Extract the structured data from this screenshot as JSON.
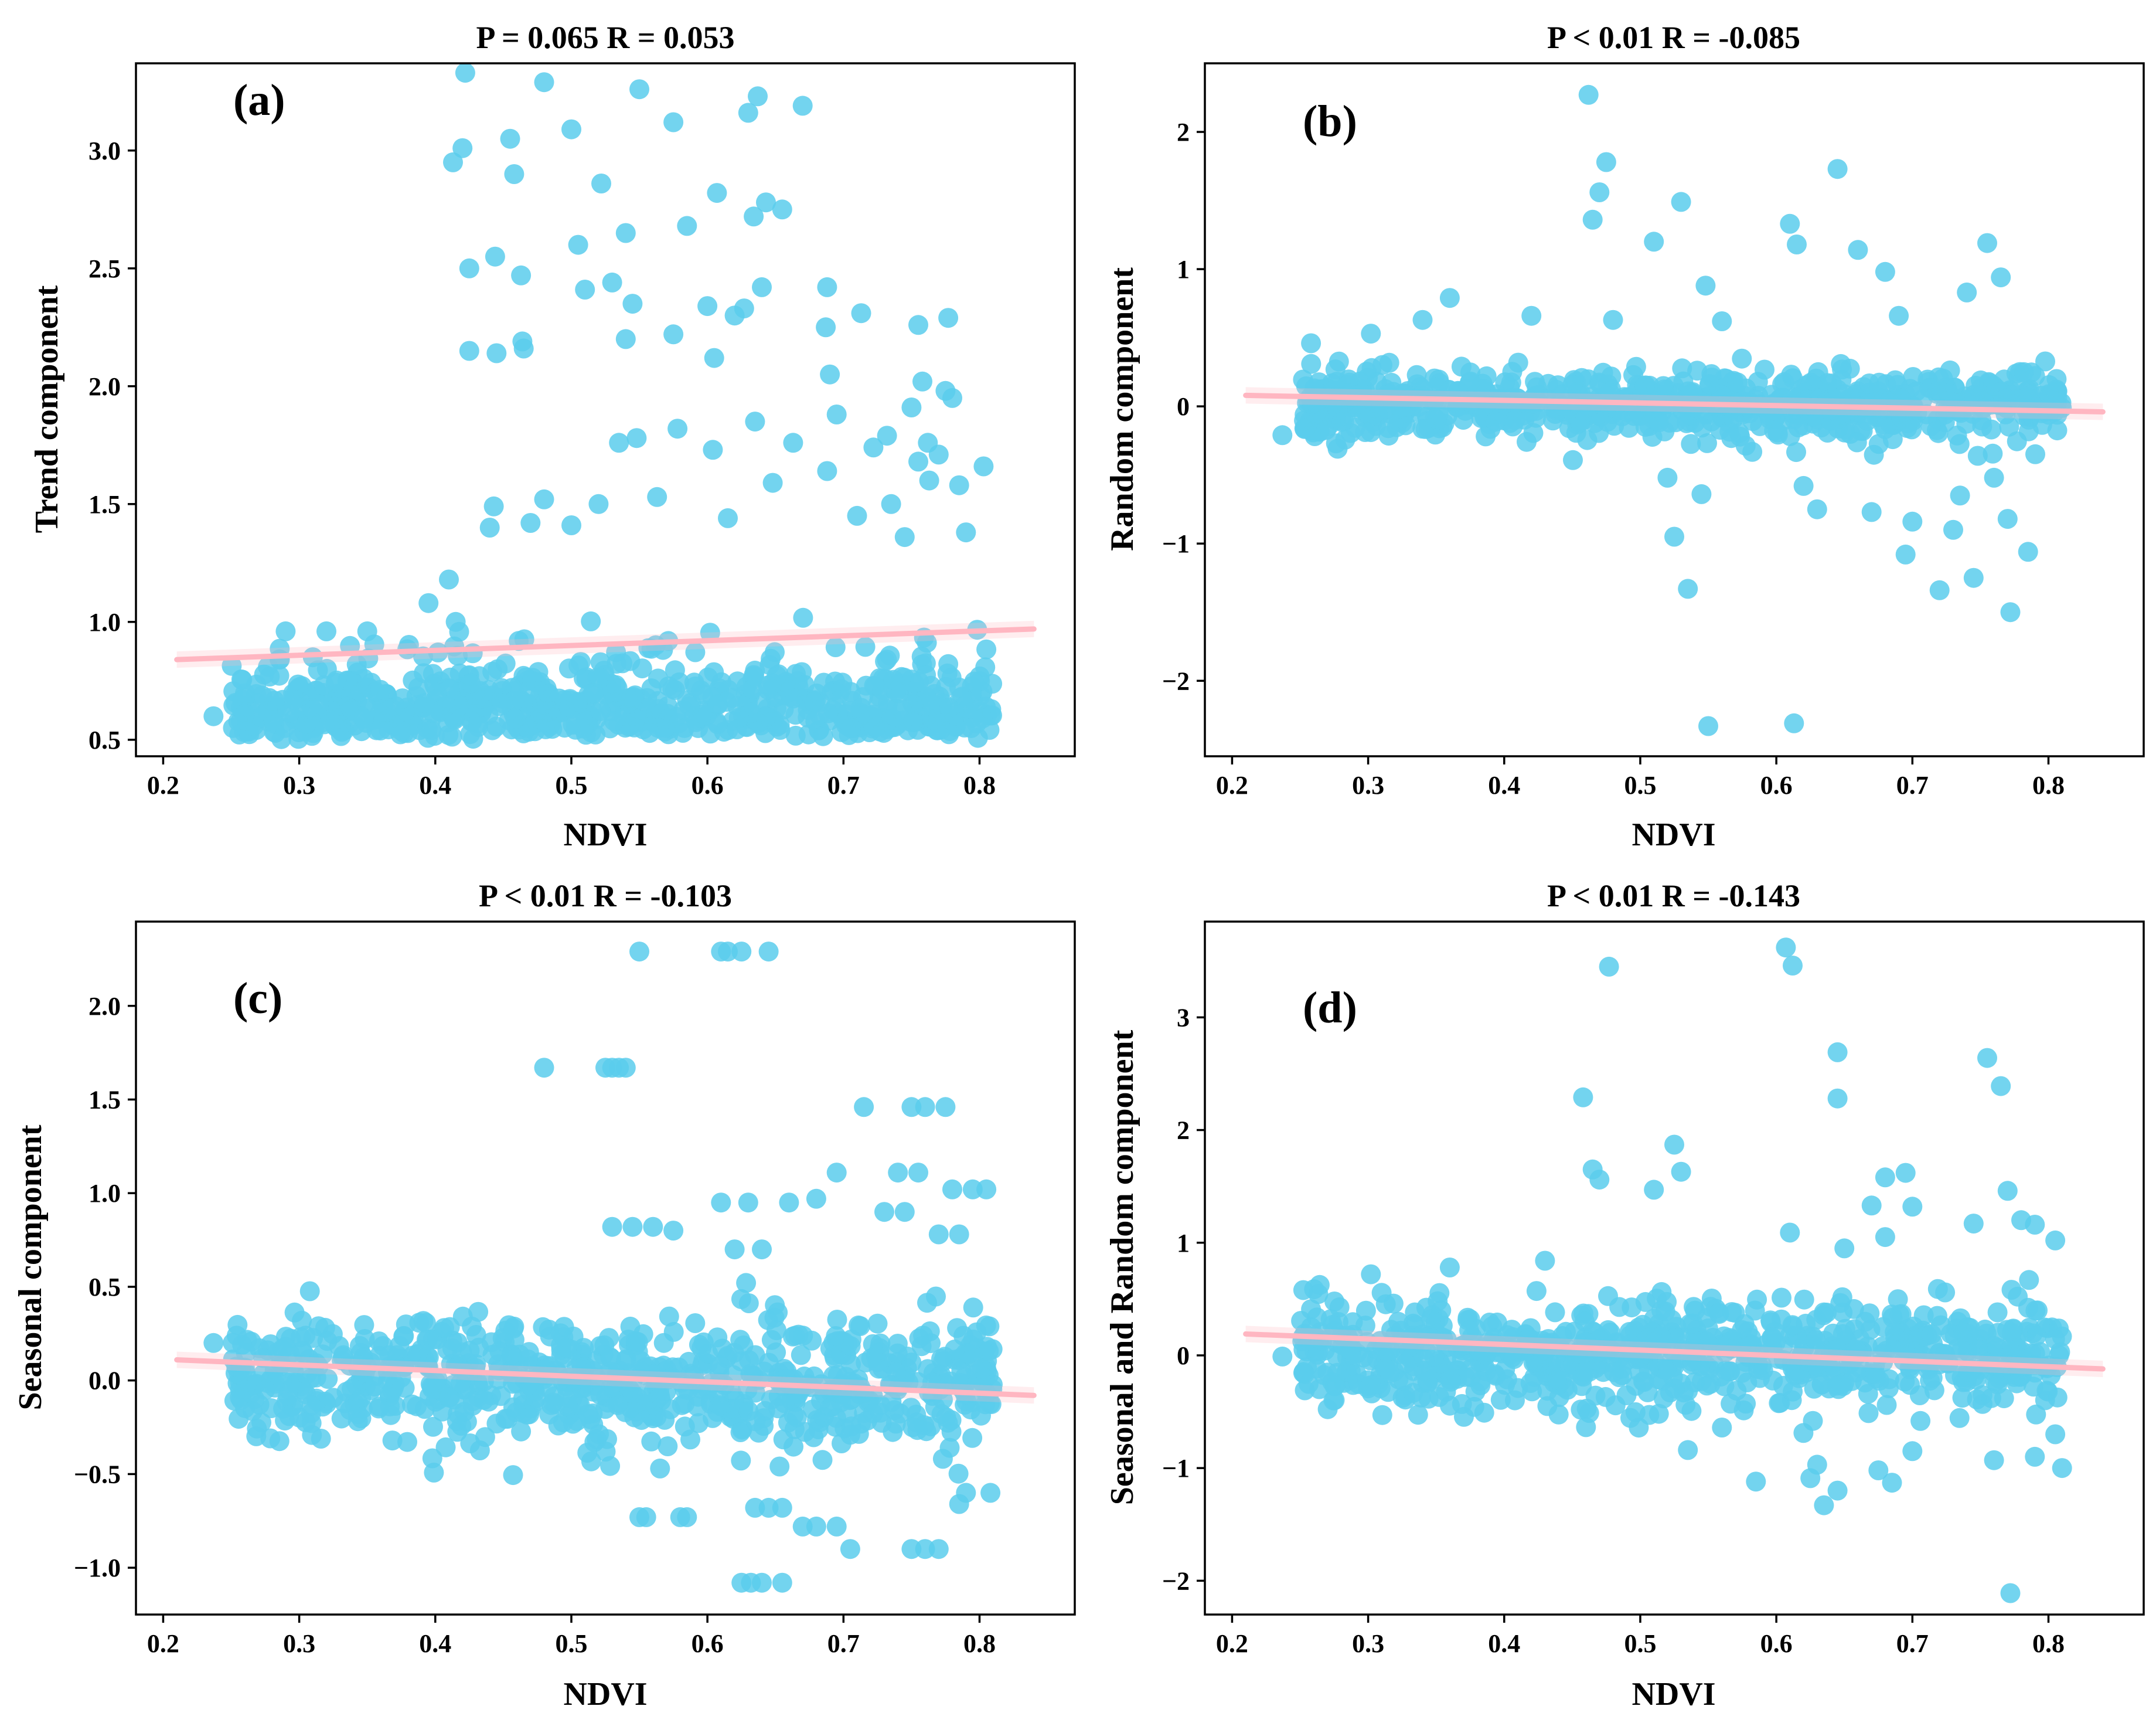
{
  "figure": {
    "point_color": "#5bcdec",
    "line_color": "#ffb6c1"
  },
  "chart_data": [
    {
      "type": "scatter",
      "panel_label": "(a)",
      "title": "P = 0.065 R = 0.053",
      "xlabel": "NDVI",
      "ylabel": "Trend component",
      "xlim": [
        0.18,
        0.87
      ],
      "ylim": [
        0.43,
        3.37
      ],
      "xticks": [
        0.2,
        0.3,
        0.4,
        0.5,
        0.6,
        0.7,
        0.8
      ],
      "xtick_labels": [
        "0.2",
        "0.3",
        "0.4",
        "0.5",
        "0.6",
        "0.7",
        "0.8"
      ],
      "yticks": [
        0.5,
        1.0,
        1.5,
        2.0,
        2.5,
        3.0
      ],
      "ytick_labels": [
        "0.5",
        "1.0",
        "1.5",
        "2.0",
        "2.5",
        "3.0"
      ],
      "regression": {
        "x": [
          0.21,
          0.84
        ],
        "y": [
          0.84,
          0.97
        ]
      },
      "cloud": {
        "x_range": [
          0.25,
          0.81
        ],
        "center": 0.72,
        "spread": 0.1,
        "min": 0.5,
        "count": 760,
        "seed": 11
      },
      "points": [
        [
          0.237,
          0.6
        ],
        [
          0.258,
          0.67
        ],
        [
          0.26,
          0.61
        ],
        [
          0.277,
          0.81
        ],
        [
          0.29,
          0.96
        ],
        [
          0.31,
          0.85
        ],
        [
          0.32,
          0.96
        ],
        [
          0.35,
          0.96
        ],
        [
          0.395,
          1.08
        ],
        [
          0.41,
          1.18
        ],
        [
          0.415,
          1.0
        ],
        [
          0.422,
          3.33
        ],
        [
          0.48,
          3.29
        ],
        [
          0.55,
          3.26
        ],
        [
          0.637,
          3.23
        ],
        [
          0.67,
          3.19
        ],
        [
          0.63,
          3.16
        ],
        [
          0.575,
          3.12
        ],
        [
          0.5,
          3.09
        ],
        [
          0.455,
          3.05
        ],
        [
          0.42,
          3.01
        ],
        [
          0.413,
          2.95
        ],
        [
          0.458,
          2.9
        ],
        [
          0.522,
          2.86
        ],
        [
          0.607,
          2.82
        ],
        [
          0.643,
          2.78
        ],
        [
          0.655,
          2.75
        ],
        [
          0.634,
          2.72
        ],
        [
          0.585,
          2.68
        ],
        [
          0.54,
          2.65
        ],
        [
          0.505,
          2.6
        ],
        [
          0.444,
          2.55
        ],
        [
          0.425,
          2.5
        ],
        [
          0.463,
          2.47
        ],
        [
          0.53,
          2.44
        ],
        [
          0.64,
          2.42
        ],
        [
          0.688,
          2.42
        ],
        [
          0.51,
          2.41
        ],
        [
          0.545,
          2.35
        ],
        [
          0.6,
          2.34
        ],
        [
          0.627,
          2.33
        ],
        [
          0.713,
          2.31
        ],
        [
          0.755,
          2.26
        ],
        [
          0.777,
          2.29
        ],
        [
          0.62,
          2.3
        ],
        [
          0.575,
          2.22
        ],
        [
          0.464,
          2.19
        ],
        [
          0.54,
          2.2
        ],
        [
          0.687,
          2.25
        ],
        [
          0.425,
          2.15
        ],
        [
          0.445,
          2.14
        ],
        [
          0.465,
          2.16
        ],
        [
          0.605,
          2.12
        ],
        [
          0.69,
          2.05
        ],
        [
          0.758,
          2.02
        ],
        [
          0.775,
          1.98
        ],
        [
          0.75,
          1.91
        ],
        [
          0.78,
          1.95
        ],
        [
          0.695,
          1.88
        ],
        [
          0.732,
          1.79
        ],
        [
          0.635,
          1.85
        ],
        [
          0.578,
          1.82
        ],
        [
          0.548,
          1.78
        ],
        [
          0.535,
          1.76
        ],
        [
          0.604,
          1.73
        ],
        [
          0.663,
          1.76
        ],
        [
          0.722,
          1.74
        ],
        [
          0.762,
          1.76
        ],
        [
          0.77,
          1.71
        ],
        [
          0.803,
          1.66
        ],
        [
          0.755,
          1.68
        ],
        [
          0.688,
          1.64
        ],
        [
          0.563,
          1.53
        ],
        [
          0.52,
          1.5
        ],
        [
          0.48,
          1.52
        ],
        [
          0.443,
          1.49
        ],
        [
          0.735,
          1.5
        ],
        [
          0.763,
          1.6
        ],
        [
          0.785,
          1.58
        ],
        [
          0.648,
          1.59
        ],
        [
          0.71,
          1.45
        ],
        [
          0.44,
          1.4
        ],
        [
          0.47,
          1.42
        ],
        [
          0.5,
          1.41
        ],
        [
          0.615,
          1.44
        ],
        [
          0.79,
          1.38
        ],
        [
          0.745,
          1.36
        ]
      ]
    },
    {
      "type": "scatter",
      "panel_label": "(b)",
      "title": "P < 0.01 R = -0.085",
      "xlabel": "NDVI",
      "ylabel": "Random component",
      "xlim": [
        0.18,
        0.87
      ],
      "ylim": [
        -2.55,
        2.5
      ],
      "xticks": [
        0.2,
        0.3,
        0.4,
        0.5,
        0.6,
        0.7,
        0.8
      ],
      "xtick_labels": [
        "0.2",
        "0.3",
        "0.4",
        "0.5",
        "0.6",
        "0.7",
        "0.8"
      ],
      "yticks": [
        -2,
        -1,
        0,
        1,
        2
      ],
      "ytick_labels": [
        "−2",
        "−1",
        "0",
        "1",
        "2"
      ],
      "regression": {
        "x": [
          0.21,
          0.84
        ],
        "y": [
          0.08,
          -0.04
        ]
      },
      "cloud": {
        "x_range": [
          0.25,
          0.81
        ],
        "center": 0.0,
        "spread": 0.12,
        "count": 780,
        "seed": 23
      },
      "points": [
        [
          0.237,
          -0.21
        ],
        [
          0.258,
          0.46
        ],
        [
          0.302,
          0.53
        ],
        [
          0.34,
          0.63
        ],
        [
          0.36,
          0.79
        ],
        [
          0.42,
          0.66
        ],
        [
          0.48,
          0.63
        ],
        [
          0.462,
          2.27
        ],
        [
          0.475,
          1.78
        ],
        [
          0.47,
          1.56
        ],
        [
          0.465,
          1.36
        ],
        [
          0.53,
          1.49
        ],
        [
          0.645,
          1.73
        ],
        [
          0.61,
          1.33
        ],
        [
          0.615,
          1.18
        ],
        [
          0.51,
          1.2
        ],
        [
          0.548,
          0.88
        ],
        [
          0.56,
          0.62
        ],
        [
          0.66,
          1.14
        ],
        [
          0.68,
          0.98
        ],
        [
          0.755,
          1.19
        ],
        [
          0.765,
          0.94
        ],
        [
          0.74,
          0.83
        ],
        [
          0.69,
          0.66
        ],
        [
          0.52,
          -0.52
        ],
        [
          0.525,
          -0.95
        ],
        [
          0.535,
          -1.33
        ],
        [
          0.55,
          -2.33
        ],
        [
          0.613,
          -2.31
        ],
        [
          0.545,
          -0.64
        ],
        [
          0.62,
          -0.58
        ],
        [
          0.63,
          -0.75
        ],
        [
          0.67,
          -0.77
        ],
        [
          0.7,
          -0.84
        ],
        [
          0.695,
          -1.08
        ],
        [
          0.72,
          -1.34
        ],
        [
          0.745,
          -1.25
        ],
        [
          0.772,
          -1.5
        ],
        [
          0.785,
          -1.06
        ],
        [
          0.76,
          -0.52
        ],
        [
          0.77,
          -0.82
        ],
        [
          0.735,
          -0.65
        ],
        [
          0.73,
          -0.9
        ]
      ]
    },
    {
      "type": "scatter",
      "panel_label": "(c)",
      "title": "P < 0.01 R = -0.103",
      "xlabel": "NDVI",
      "ylabel": "Seasonal component",
      "xlim": [
        0.18,
        0.87
      ],
      "ylim": [
        -1.25,
        2.45
      ],
      "xticks": [
        0.2,
        0.3,
        0.4,
        0.5,
        0.6,
        0.7,
        0.8
      ],
      "xtick_labels": [
        "0.2",
        "0.3",
        "0.4",
        "0.5",
        "0.6",
        "0.7",
        "0.8"
      ],
      "yticks": [
        -1.0,
        -0.5,
        0.0,
        0.5,
        1.0,
        1.5,
        2.0
      ],
      "ytick_labels": [
        "−1.0",
        "−0.5",
        "0.0",
        "0.5",
        "1.0",
        "1.5",
        "2.0"
      ],
      "regression": {
        "x": [
          0.21,
          0.84
        ],
        "y": [
          0.11,
          -0.08
        ]
      },
      "cloud": {
        "x_range": [
          0.25,
          0.81
        ],
        "center": 0.0,
        "spread": 0.17,
        "count": 780,
        "seed": 37
      },
      "points": [
        [
          0.237,
          0.2
        ],
        [
          0.258,
          0.19
        ],
        [
          0.26,
          -0.05
        ],
        [
          0.275,
          -0.05
        ],
        [
          0.29,
          0.18
        ],
        [
          0.55,
          2.29
        ],
        [
          0.61,
          2.29
        ],
        [
          0.615,
          2.29
        ],
        [
          0.625,
          2.29
        ],
        [
          0.645,
          2.29
        ],
        [
          0.48,
          1.67
        ],
        [
          0.525,
          1.67
        ],
        [
          0.53,
          1.67
        ],
        [
          0.535,
          1.67
        ],
        [
          0.54,
          1.67
        ],
        [
          0.715,
          1.46
        ],
        [
          0.75,
          1.46
        ],
        [
          0.76,
          1.46
        ],
        [
          0.775,
          1.46
        ],
        [
          0.695,
          1.11
        ],
        [
          0.74,
          1.11
        ],
        [
          0.755,
          1.11
        ],
        [
          0.78,
          1.02
        ],
        [
          0.795,
          1.02
        ],
        [
          0.805,
          1.02
        ],
        [
          0.61,
          0.95
        ],
        [
          0.63,
          0.95
        ],
        [
          0.66,
          0.95
        ],
        [
          0.68,
          0.97
        ],
        [
          0.73,
          0.9
        ],
        [
          0.745,
          0.9
        ],
        [
          0.77,
          0.78
        ],
        [
          0.785,
          0.78
        ],
        [
          0.53,
          0.82
        ],
        [
          0.545,
          0.82
        ],
        [
          0.56,
          0.82
        ],
        [
          0.575,
          0.8
        ],
        [
          0.64,
          0.7
        ],
        [
          0.62,
          0.7
        ],
        [
          0.55,
          -0.73
        ],
        [
          0.555,
          -0.73
        ],
        [
          0.58,
          -0.73
        ],
        [
          0.585,
          -0.73
        ],
        [
          0.635,
          -0.68
        ],
        [
          0.645,
          -0.68
        ],
        [
          0.655,
          -0.68
        ],
        [
          0.67,
          -0.78
        ],
        [
          0.68,
          -0.78
        ],
        [
          0.695,
          -0.78
        ],
        [
          0.705,
          -0.9
        ],
        [
          0.75,
          -0.9
        ],
        [
          0.76,
          -0.9
        ],
        [
          0.77,
          -0.9
        ],
        [
          0.625,
          -1.08
        ],
        [
          0.632,
          -1.08
        ],
        [
          0.64,
          -1.08
        ],
        [
          0.655,
          -1.08
        ],
        [
          0.79,
          -0.6
        ],
        [
          0.808,
          -0.6
        ],
        [
          0.785,
          -0.66
        ]
      ]
    },
    {
      "type": "scatter",
      "panel_label": "(d)",
      "title": "P < 0.01 R = -0.143",
      "xlabel": "NDVI",
      "ylabel": "Seasonal and Random component",
      "xlim": [
        0.18,
        0.87
      ],
      "ylim": [
        -2.3,
        3.85
      ],
      "xticks": [
        0.2,
        0.3,
        0.4,
        0.5,
        0.6,
        0.7,
        0.8
      ],
      "xtick_labels": [
        "0.2",
        "0.3",
        "0.4",
        "0.5",
        "0.6",
        "0.7",
        "0.8"
      ],
      "yticks": [
        -2,
        -1,
        0,
        1,
        2,
        3
      ],
      "ytick_labels": [
        "−2",
        "−1",
        "0",
        "1",
        "2",
        "3"
      ],
      "regression": {
        "x": [
          0.21,
          0.84
        ],
        "y": [
          0.19,
          -0.12
        ]
      },
      "cloud": {
        "x_range": [
          0.25,
          0.81
        ],
        "center": 0.0,
        "spread": 0.24,
        "count": 800,
        "seed": 53
      },
      "points": [
        [
          0.237,
          -0.01
        ],
        [
          0.258,
          0.41
        ],
        [
          0.258,
          0.25
        ],
        [
          0.302,
          0.72
        ],
        [
          0.36,
          0.78
        ],
        [
          0.43,
          0.84
        ],
        [
          0.477,
          3.45
        ],
        [
          0.607,
          3.62
        ],
        [
          0.612,
          3.46
        ],
        [
          0.645,
          2.69
        ],
        [
          0.645,
          2.28
        ],
        [
          0.755,
          2.64
        ],
        [
          0.765,
          2.39
        ],
        [
          0.458,
          2.29
        ],
        [
          0.465,
          1.65
        ],
        [
          0.47,
          1.56
        ],
        [
          0.525,
          1.87
        ],
        [
          0.53,
          1.63
        ],
        [
          0.51,
          1.47
        ],
        [
          0.68,
          1.58
        ],
        [
          0.695,
          1.62
        ],
        [
          0.7,
          1.32
        ],
        [
          0.67,
          1.33
        ],
        [
          0.77,
          1.46
        ],
        [
          0.745,
          1.17
        ],
        [
          0.78,
          1.2
        ],
        [
          0.79,
          1.16
        ],
        [
          0.805,
          1.02
        ],
        [
          0.61,
          1.09
        ],
        [
          0.68,
          1.05
        ],
        [
          0.65,
          0.95
        ],
        [
          0.535,
          -0.84
        ],
        [
          0.56,
          -0.64
        ],
        [
          0.585,
          -1.12
        ],
        [
          0.625,
          -1.09
        ],
        [
          0.645,
          -1.2
        ],
        [
          0.63,
          -0.97
        ],
        [
          0.635,
          -1.33
        ],
        [
          0.675,
          -1.02
        ],
        [
          0.685,
          -1.13
        ],
        [
          0.7,
          -0.85
        ],
        [
          0.772,
          -2.11
        ],
        [
          0.76,
          -0.93
        ],
        [
          0.79,
          -0.9
        ],
        [
          0.81,
          -1.0
        ],
        [
          0.805,
          -0.7
        ]
      ]
    }
  ]
}
